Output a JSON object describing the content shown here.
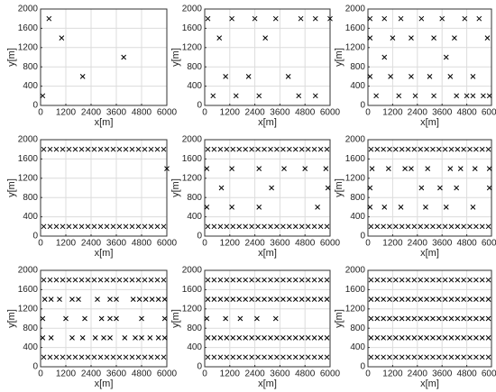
{
  "chart_data": [
    {
      "type": "scatter",
      "xlabel": "x[m]",
      "ylabel": "y[m]",
      "color": "#000000",
      "marker": "x",
      "grid": true,
      "xlim": [
        0,
        6000
      ],
      "ylim": [
        0,
        2000
      ],
      "xticks": [
        0,
        1200,
        2400,
        3600,
        4800,
        6000
      ],
      "yticks": [
        0,
        400,
        800,
        1200,
        1600,
        2000
      ],
      "x": [
        100,
        400,
        1000,
        2000,
        3950
      ],
      "y": [
        200,
        1800,
        1400,
        600,
        1000
      ]
    },
    {
      "type": "scatter",
      "xlabel": "x[m]",
      "ylabel": "y[m]",
      "color": "#000000",
      "marker": "x",
      "grid": true,
      "xlim": [
        0,
        6000
      ],
      "ylim": [
        0,
        2000
      ],
      "xticks": [
        0,
        1200,
        2400,
        3600,
        4800,
        6000
      ],
      "yticks": [
        0,
        400,
        800,
        1200,
        1600,
        2000
      ],
      "x": [
        150,
        1300,
        2400,
        3400,
        4600,
        5300,
        6000,
        700,
        2900,
        1000,
        2100,
        4000,
        400,
        1500,
        2600,
        4500,
        5300
      ],
      "y": [
        1800,
        1800,
        1800,
        1800,
        1800,
        1800,
        1800,
        1400,
        1400,
        600,
        600,
        600,
        200,
        200,
        200,
        200,
        200
      ]
    },
    {
      "type": "scatter",
      "xlabel": "x[m]",
      "ylabel": "y[m]",
      "color": "#000000",
      "marker": "x",
      "grid": true,
      "xlim": [
        0,
        6000
      ],
      "ylim": [
        0,
        2000
      ],
      "xticks": [
        0,
        1200,
        2400,
        3600,
        4800,
        6000
      ],
      "yticks": [
        0,
        400,
        800,
        1200,
        1600,
        2000
      ],
      "x": [
        100,
        800,
        1600,
        2600,
        3600,
        4700,
        5400,
        100,
        1200,
        2100,
        3200,
        4200,
        5800,
        800,
        3800,
        100,
        1100,
        2100,
        3000,
        4000,
        5100,
        400,
        1500,
        2300,
        3200,
        4300,
        4800,
        5100,
        5600,
        5900
      ],
      "y": [
        1800,
        1800,
        1800,
        1800,
        1800,
        1800,
        1800,
        1400,
        1400,
        1400,
        1400,
        1400,
        1400,
        1000,
        1000,
        600,
        600,
        600,
        600,
        600,
        600,
        200,
        200,
        200,
        200,
        200,
        200,
        200,
        200,
        200
      ]
    },
    {
      "type": "scatter",
      "xlabel": "x[m]",
      "ylabel": "y[m]",
      "color": "#000000",
      "marker": "x",
      "grid": true,
      "xlim": [
        0,
        6000
      ],
      "ylim": [
        0,
        2000
      ],
      "xticks": [
        0,
        1200,
        2400,
        3600,
        4800,
        6000
      ],
      "yticks": [
        0,
        400,
        800,
        1200,
        1600,
        2000
      ],
      "x": [
        150,
        450,
        750,
        1050,
        1350,
        1650,
        1950,
        2250,
        2550,
        2850,
        3150,
        3450,
        3750,
        4050,
        4350,
        4650,
        4950,
        5250,
        5550,
        5850,
        150,
        450,
        750,
        1050,
        1350,
        1650,
        1950,
        2250,
        2550,
        2850,
        3150,
        3450,
        3750,
        4050,
        4350,
        4650,
        4950,
        5250,
        5550,
        5850,
        6000
      ],
      "y": [
        1800,
        1800,
        1800,
        1800,
        1800,
        1800,
        1800,
        1800,
        1800,
        1800,
        1800,
        1800,
        1800,
        1800,
        1800,
        1800,
        1800,
        1800,
        1800,
        1800,
        200,
        200,
        200,
        200,
        200,
        200,
        200,
        200,
        200,
        200,
        200,
        200,
        200,
        200,
        200,
        200,
        200,
        200,
        200,
        200,
        1400
      ]
    },
    {
      "type": "scatter",
      "xlabel": "x[m]",
      "ylabel": "y[m]",
      "color": "#000000",
      "marker": "x",
      "grid": true,
      "xlim": [
        0,
        6000
      ],
      "ylim": [
        0,
        2000
      ],
      "xticks": [
        0,
        1200,
        2400,
        3600,
        4800,
        6000
      ],
      "yticks": [
        0,
        400,
        800,
        1200,
        1600,
        2000
      ],
      "x": [
        150,
        450,
        750,
        1050,
        1350,
        1650,
        1950,
        2250,
        2550,
        2850,
        3150,
        3450,
        3750,
        4050,
        4350,
        4650,
        4950,
        5250,
        5550,
        5850,
        150,
        450,
        750,
        1050,
        1350,
        1650,
        1950,
        2250,
        2550,
        2850,
        3150,
        3450,
        3750,
        4050,
        4350,
        4650,
        4950,
        5250,
        5550,
        5850,
        100,
        1300,
        2600,
        3800,
        4800,
        5800,
        800,
        3200,
        5900,
        100,
        1300,
        2600,
        5400
      ],
      "y": [
        1800,
        1800,
        1800,
        1800,
        1800,
        1800,
        1800,
        1800,
        1800,
        1800,
        1800,
        1800,
        1800,
        1800,
        1800,
        1800,
        1800,
        1800,
        1800,
        1800,
        200,
        200,
        200,
        200,
        200,
        200,
        200,
        200,
        200,
        200,
        200,
        200,
        200,
        200,
        200,
        200,
        200,
        200,
        200,
        200,
        1400,
        1400,
        1400,
        1400,
        1400,
        1400,
        1000,
        1000,
        1000,
        600,
        600,
        600,
        600
      ]
    },
    {
      "type": "scatter",
      "xlabel": "x[m]",
      "ylabel": "y[m]",
      "color": "#000000",
      "marker": "x",
      "grid": true,
      "xlim": [
        0,
        6000
      ],
      "ylim": [
        0,
        2000
      ],
      "xticks": [
        0,
        1200,
        2400,
        3600,
        4800,
        6000
      ],
      "yticks": [
        0,
        400,
        800,
        1200,
        1600,
        2000
      ],
      "x": [
        150,
        450,
        750,
        1050,
        1350,
        1650,
        1950,
        2250,
        2550,
        2850,
        3150,
        3450,
        3750,
        4050,
        4350,
        4650,
        4950,
        5250,
        5550,
        5850,
        150,
        450,
        750,
        1050,
        1350,
        1650,
        1950,
        2250,
        2550,
        2850,
        3150,
        3450,
        3750,
        4050,
        4350,
        4650,
        4950,
        5250,
        5550,
        5850,
        200,
        1000,
        1800,
        2100,
        2900,
        4000,
        4500,
        5200,
        5900,
        100,
        2600,
        3500,
        4300,
        5900,
        100,
        800,
        1600,
        2800,
        3800,
        5100
      ],
      "y": [
        1800,
        1800,
        1800,
        1800,
        1800,
        1800,
        1800,
        1800,
        1800,
        1800,
        1800,
        1800,
        1800,
        1800,
        1800,
        1800,
        1800,
        1800,
        1800,
        1800,
        200,
        200,
        200,
        200,
        200,
        200,
        200,
        200,
        200,
        200,
        200,
        200,
        200,
        200,
        200,
        200,
        200,
        200,
        200,
        200,
        1400,
        1400,
        1400,
        1400,
        1400,
        1400,
        1400,
        1400,
        1400,
        1000,
        1000,
        1000,
        1000,
        1000,
        600,
        600,
        600,
        600,
        600,
        600
      ]
    },
    {
      "type": "scatter",
      "xlabel": "x[m]",
      "ylabel": "y[m]",
      "color": "#000000",
      "marker": "x",
      "grid": true,
      "xlim": [
        0,
        6000
      ],
      "ylim": [
        0,
        2000
      ],
      "xticks": [
        0,
        1200,
        2400,
        3600,
        4800,
        6000
      ],
      "yticks": [
        0,
        400,
        800,
        1200,
        1600,
        2000
      ],
      "x": [
        150,
        450,
        750,
        1050,
        1350,
        1650,
        1950,
        2250,
        2550,
        2850,
        3150,
        3450,
        3750,
        4050,
        4350,
        4650,
        4950,
        5250,
        5550,
        5850,
        150,
        450,
        750,
        1050,
        1350,
        1650,
        1950,
        2250,
        2550,
        2850,
        3150,
        3450,
        3750,
        4050,
        4350,
        4650,
        4950,
        5250,
        5550,
        5850,
        200,
        500,
        900,
        1500,
        1800,
        2700,
        3300,
        3600,
        4400,
        4700,
        5000,
        5300,
        5600,
        5900,
        100,
        1200,
        2100,
        2900,
        3300,
        3600,
        4800,
        5900,
        100,
        500,
        1500,
        2000,
        2600,
        3000,
        3300,
        4000,
        4500,
        4800,
        5200,
        5600,
        5900
      ],
      "y": [
        1800,
        1800,
        1800,
        1800,
        1800,
        1800,
        1800,
        1800,
        1800,
        1800,
        1800,
        1800,
        1800,
        1800,
        1800,
        1800,
        1800,
        1800,
        1800,
        1800,
        200,
        200,
        200,
        200,
        200,
        200,
        200,
        200,
        200,
        200,
        200,
        200,
        200,
        200,
        200,
        200,
        200,
        200,
        200,
        200,
        1400,
        1400,
        1400,
        1400,
        1400,
        1400,
        1400,
        1400,
        1400,
        1400,
        1400,
        1400,
        1400,
        1400,
        1000,
        1000,
        1000,
        1000,
        1000,
        1000,
        1000,
        1000,
        600,
        600,
        600,
        600,
        600,
        600,
        600,
        600,
        600,
        600,
        600,
        600,
        600
      ]
    },
    {
      "type": "scatter",
      "xlabel": "x[m]",
      "ylabel": "y[m]",
      "color": "#000000",
      "marker": "x",
      "grid": true,
      "xlim": [
        0,
        6000
      ],
      "ylim": [
        0,
        2000
      ],
      "xticks": [
        0,
        1200,
        2400,
        3600,
        4800,
        6000
      ],
      "yticks": [
        0,
        400,
        800,
        1200,
        1600,
        2000
      ],
      "x": [
        150,
        450,
        750,
        1050,
        1350,
        1650,
        1950,
        2250,
        2550,
        2850,
        3150,
        3450,
        3750,
        4050,
        4350,
        4650,
        4950,
        5250,
        5550,
        5850,
        150,
        450,
        750,
        1050,
        1350,
        1650,
        1950,
        2250,
        2550,
        2850,
        3150,
        3450,
        3750,
        4050,
        4350,
        4650,
        4950,
        5250,
        5550,
        5850,
        150,
        450,
        750,
        1050,
        1350,
        1650,
        1950,
        2250,
        2550,
        2850,
        3150,
        3450,
        3750,
        4050,
        4350,
        4650,
        4950,
        5250,
        5550,
        5850,
        150,
        450,
        750,
        1050,
        1350,
        1650,
        1950,
        2250,
        2550,
        2850,
        3150,
        3450,
        3750,
        4050,
        4350,
        4650,
        4950,
        5250,
        5550,
        5850,
        100,
        1000,
        1700,
        2500,
        3400
      ],
      "y": [
        1800,
        1800,
        1800,
        1800,
        1800,
        1800,
        1800,
        1800,
        1800,
        1800,
        1800,
        1800,
        1800,
        1800,
        1800,
        1800,
        1800,
        1800,
        1800,
        1800,
        1400,
        1400,
        1400,
        1400,
        1400,
        1400,
        1400,
        1400,
        1400,
        1400,
        1400,
        1400,
        1400,
        1400,
        1400,
        1400,
        1400,
        1400,
        1400,
        1400,
        600,
        600,
        600,
        600,
        600,
        600,
        600,
        600,
        600,
        600,
        600,
        600,
        600,
        600,
        600,
        600,
        600,
        600,
        600,
        600,
        200,
        200,
        200,
        200,
        200,
        200,
        200,
        200,
        200,
        200,
        200,
        200,
        200,
        200,
        200,
        200,
        200,
        200,
        200,
        200,
        1000,
        1000,
        1000,
        1000,
        1000
      ]
    },
    {
      "type": "scatter",
      "xlabel": "x[m]",
      "ylabel": "y[m]",
      "color": "#000000",
      "marker": "x",
      "grid": true,
      "xlim": [
        0,
        6000
      ],
      "ylim": [
        0,
        2000
      ],
      "xticks": [
        0,
        1200,
        2400,
        3600,
        4800,
        6000
      ],
      "yticks": [
        0,
        400,
        800,
        1200,
        1600,
        2000
      ],
      "x": [
        150,
        450,
        750,
        1050,
        1350,
        1650,
        1950,
        2250,
        2550,
        2850,
        3150,
        3450,
        3750,
        4050,
        4350,
        4650,
        4950,
        5250,
        5550,
        5850,
        150,
        450,
        750,
        1050,
        1350,
        1650,
        1950,
        2250,
        2550,
        2850,
        3150,
        3450,
        3750,
        4050,
        4350,
        4650,
        4950,
        5250,
        5550,
        5850,
        150,
        450,
        750,
        1050,
        1350,
        1650,
        1950,
        2250,
        2550,
        2850,
        3150,
        3450,
        3750,
        4050,
        4350,
        4650,
        4950,
        5250,
        5550,
        5850,
        150,
        450,
        750,
        1050,
        1350,
        1650,
        1950,
        2250,
        2550,
        2850,
        3150,
        3450,
        3750,
        4050,
        4350,
        4650,
        4950,
        5250,
        5550,
        5850,
        150,
        450,
        750,
        1050,
        1350,
        1650,
        1950,
        2250,
        2550,
        2850,
        3150,
        3450,
        3750,
        4050,
        4350,
        4650,
        4950,
        5250,
        5550,
        5850
      ],
      "y": [
        1800,
        1800,
        1800,
        1800,
        1800,
        1800,
        1800,
        1800,
        1800,
        1800,
        1800,
        1800,
        1800,
        1800,
        1800,
        1800,
        1800,
        1800,
        1800,
        1800,
        1400,
        1400,
        1400,
        1400,
        1400,
        1400,
        1400,
        1400,
        1400,
        1400,
        1400,
        1400,
        1400,
        1400,
        1400,
        1400,
        1400,
        1400,
        1400,
        1400,
        1000,
        1000,
        1000,
        1000,
        1000,
        1000,
        1000,
        1000,
        1000,
        1000,
        1000,
        1000,
        1000,
        1000,
        1000,
        1000,
        1000,
        1000,
        1000,
        1000,
        600,
        600,
        600,
        600,
        600,
        600,
        600,
        600,
        600,
        600,
        600,
        600,
        600,
        600,
        600,
        600,
        600,
        600,
        600,
        600,
        200,
        200,
        200,
        200,
        200,
        200,
        200,
        200,
        200,
        200,
        200,
        200,
        200,
        200,
        200,
        200,
        200,
        200,
        200,
        200
      ]
    }
  ]
}
